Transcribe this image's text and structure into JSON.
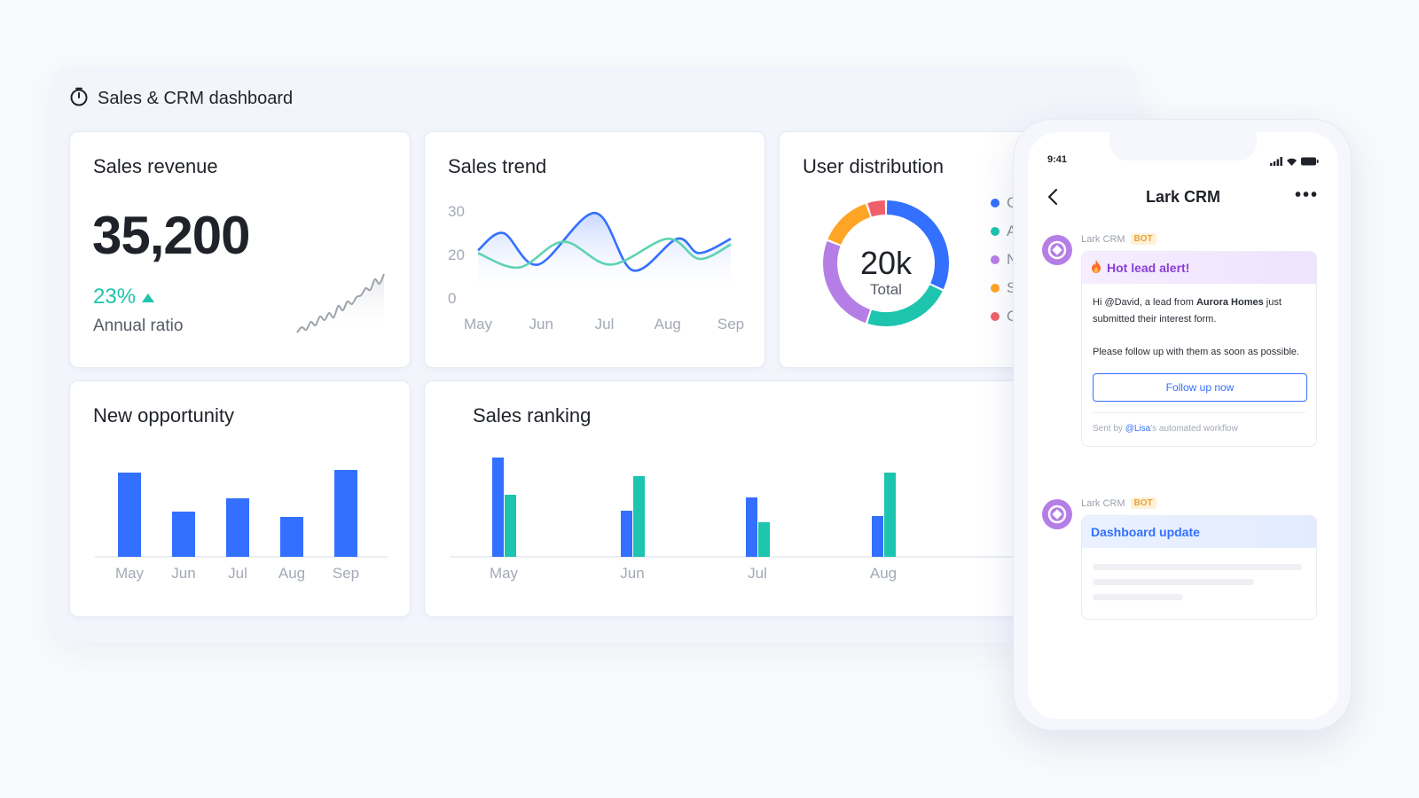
{
  "dashboard": {
    "title": "Sales & CRM dashboard",
    "icon": "timer-icon"
  },
  "sales_revenue": {
    "title": "Sales revenue",
    "value": "35,200",
    "ratio": "23%",
    "ratio_label": "Annual ratio",
    "accent": "#1dc4ae"
  },
  "sales_trend": {
    "title": "Sales trend",
    "y_ticks": [
      "30",
      "20",
      "0"
    ],
    "x_ticks": [
      "May",
      "Jun",
      "Jul",
      "Aug",
      "Sep"
    ]
  },
  "user_distribution": {
    "title": "User distribution",
    "center_value": "20k",
    "center_label": "Total",
    "legend": [
      {
        "label": "China",
        "color": "#3370ff"
      },
      {
        "label": "Australia",
        "color": "#1dc4ae"
      },
      {
        "label": "North America",
        "color": "#b57ee6"
      },
      {
        "label": "Singapore",
        "color": "#ffa425"
      },
      {
        "label": "Others",
        "color": "#f0606b"
      }
    ]
  },
  "new_opportunity": {
    "title": "New opportunity",
    "x_ticks": [
      "May",
      "Jun",
      "Jul",
      "Aug",
      "Sep"
    ]
  },
  "sales_ranking": {
    "title": "Sales ranking",
    "x_ticks": [
      "May",
      "Jun",
      "Jul",
      "Aug"
    ]
  },
  "chart_data": [
    {
      "type": "line",
      "title": "Sales trend",
      "categories": [
        "May",
        "Jun",
        "Jul",
        "Aug",
        "Sep"
      ],
      "ylim": [
        0,
        30
      ],
      "y_ticks": [
        30,
        20,
        0
      ],
      "series": [
        {
          "color": "#3370ff",
          "x": [
            0,
            0.4,
            0.95,
            1.85,
            2.45,
            3.15,
            3.5,
            4
          ],
          "values": [
            16,
            22,
            11,
            29,
            9,
            20,
            15,
            20
          ]
        },
        {
          "color": "#5fd3b3",
          "x": [
            0,
            0.65,
            1.35,
            2.1,
            3.0,
            3.5,
            4
          ],
          "values": [
            15,
            10,
            19,
            11,
            20,
            13,
            18
          ]
        }
      ]
    },
    {
      "type": "pie",
      "title": "User distribution",
      "labels": [
        "China",
        "Australia",
        "North America",
        "Singapore",
        "Others"
      ],
      "values": [
        32,
        23,
        26,
        14,
        5
      ],
      "colors": [
        "#3370ff",
        "#1dc4ae",
        "#b57ee6",
        "#ffa425",
        "#f0606b"
      ]
    },
    {
      "type": "bar",
      "title": "New opportunity",
      "categories": [
        "May",
        "Jun",
        "Jul",
        "Aug",
        "Sep"
      ],
      "values": [
        95,
        51,
        66,
        45,
        98
      ],
      "ylim": [
        0,
        100
      ],
      "color": "#3370ff"
    },
    {
      "type": "bar",
      "title": "Sales ranking",
      "categories": [
        "May",
        "Jun",
        "Jul",
        "Aug"
      ],
      "ylim": [
        0,
        115
      ],
      "series": [
        {
          "color": "#3370ff",
          "values": [
            112,
            52,
            67,
            46
          ]
        },
        {
          "color": "#1dc4ae",
          "values": [
            70,
            91,
            39,
            95
          ]
        }
      ]
    },
    {
      "type": "line",
      "title": "",
      "series": [
        {
          "color": "#9ea3ad",
          "values": [
            0,
            6,
            3,
            12,
            8,
            18,
            14,
            22,
            17,
            30,
            25,
            35,
            32,
            40,
            42,
            50,
            48,
            60,
            55,
            66
          ]
        }
      ]
    }
  ],
  "phone": {
    "time": "9:41",
    "app_title": "Lark CRM",
    "more": "•••",
    "bot_name": "Lark CRM",
    "bot_tag": "BOT",
    "alert": {
      "title": "Hot lead alert!",
      "icon": "fire-icon",
      "line1_pre": "Hi @David, a lead from ",
      "line1_company": "Aurora Homes",
      "line1_post": " just submitted their interest form.",
      "line2": "Please follow up with them as soon as possible.",
      "button": "Follow up now",
      "footer_pre": "Sent by ",
      "footer_mention": "@Lisa",
      "footer_post": "'s automated workflow"
    },
    "update": {
      "title": "Dashboard update"
    }
  }
}
